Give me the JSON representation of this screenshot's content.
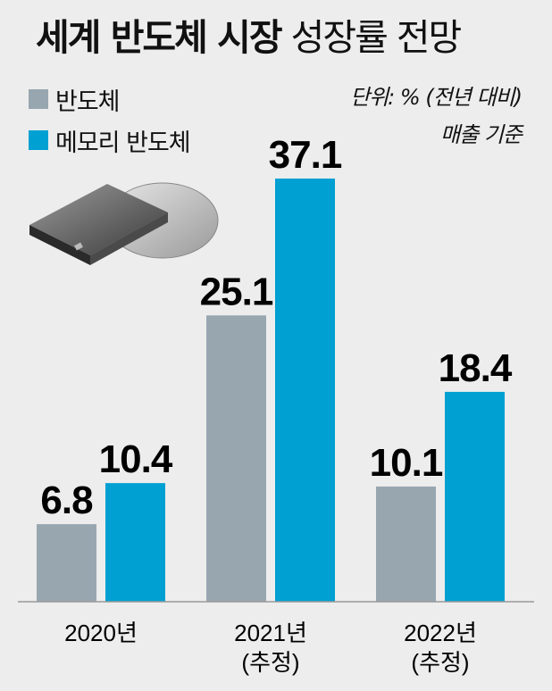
{
  "header": {
    "title_bold": "세계 반도체 시장",
    "title_light": "성장률 전망"
  },
  "legend": [
    {
      "label": "반도체",
      "color": "#98a6b0"
    },
    {
      "label": "메모리 반도체",
      "color": "#00a0d2"
    }
  ],
  "unit": {
    "line1": "단위: % (전년 대비)",
    "line2": "매출 기준"
  },
  "chart_data": {
    "type": "bar",
    "categories": [
      [
        "2020년"
      ],
      [
        "2021년",
        "(추정)"
      ],
      [
        "2022년",
        "(추정)"
      ]
    ],
    "series": [
      {
        "name": "반도체",
        "values": [
          6.8,
          25.1,
          10.1
        ],
        "color": "#98a6b0"
      },
      {
        "name": "메모리 반도체",
        "values": [
          10.4,
          37.1,
          18.4
        ],
        "color": "#00a0d2"
      }
    ],
    "ylim": [
      0,
      37.1
    ]
  }
}
